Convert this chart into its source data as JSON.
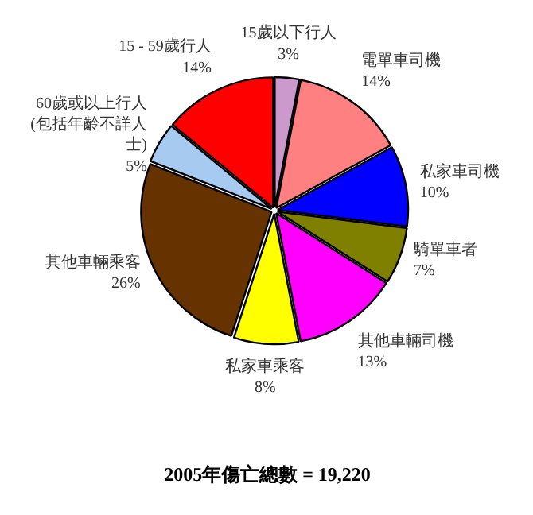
{
  "chart_data": {
    "type": "pie",
    "title": "2005年傷亡總數 = 19,220",
    "categories": [
      "15歲以下行人",
      "電單車司機",
      "私家車司機",
      "騎單車者",
      "其他車輛司機",
      "私家車乘客",
      "其他車輛乘客",
      "60歲或以上行人(包括年齡不詳人士)",
      "15 - 59歲行人"
    ],
    "values": [
      3,
      14,
      10,
      7,
      13,
      8,
      26,
      5,
      14
    ],
    "value_labels": [
      "3%",
      "14%",
      "10%",
      "7%",
      "13%",
      "8%",
      "26%",
      "5%",
      "14%"
    ],
    "colors": [
      "#cc99cc",
      "#ff8080",
      "#0000ff",
      "#808000",
      "#ff00ff",
      "#ffff00",
      "#663300",
      "#a6caf0",
      "#ff0000"
    ]
  }
}
